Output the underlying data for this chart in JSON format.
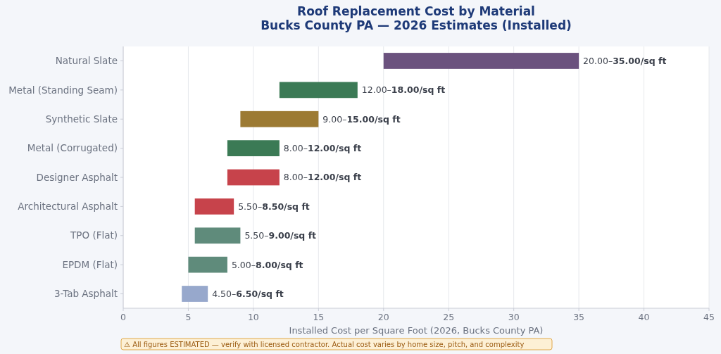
{
  "chart_data": {
    "type": "bar",
    "orientation": "horizontal",
    "title": "Roof Replacement Cost by Material",
    "subtitle": "Bucks County PA — 2026 Estimates (Installed)",
    "xlabel": "Installed Cost per Square Foot (2026, Bucks County PA)",
    "categories": [
      "Natural Slate",
      "Metal (Standing Seam)",
      "Synthetic Slate",
      "Metal (Corrugated)",
      "Designer Asphalt",
      "Architectural Asphalt",
      "TPO (Flat)",
      "EPDM (Flat)",
      "3-Tab Asphalt"
    ],
    "base": [
      20,
      12,
      9,
      8,
      8,
      5.5,
      5.5,
      5,
      4.5
    ],
    "values": [
      15,
      6,
      6,
      4,
      4,
      3,
      3.5,
      3,
      2
    ],
    "colors": [
      "#6b527e",
      "#3b7a55",
      "#9c7a33",
      "#3b7a55",
      "#c7434b",
      "#c7434b",
      "#5f8b7b",
      "#5f8b7b",
      "#97a8cc"
    ],
    "value_labels": [
      "20.00–35.00/sq ft",
      "12.00–18.00/sq ft",
      "9.00–15.00/sq ft",
      "8.00–12.00/sq ft",
      "8.00–12.00/sq ft",
      "5.50–8.50/sq ft",
      "5.50–9.00/sq ft",
      "5.00–8.00/sq ft",
      "4.50–6.50/sq ft"
    ],
    "xlim": [
      0,
      45
    ],
    "xticks": [
      0,
      5,
      10,
      15,
      20,
      25,
      30,
      35,
      40,
      45
    ],
    "grid": "x",
    "annotations": [
      "⚠ All figures ESTIMATED — verify with licensed contractor. Actual cost varies by home size, pitch, and complexity"
    ]
  }
}
